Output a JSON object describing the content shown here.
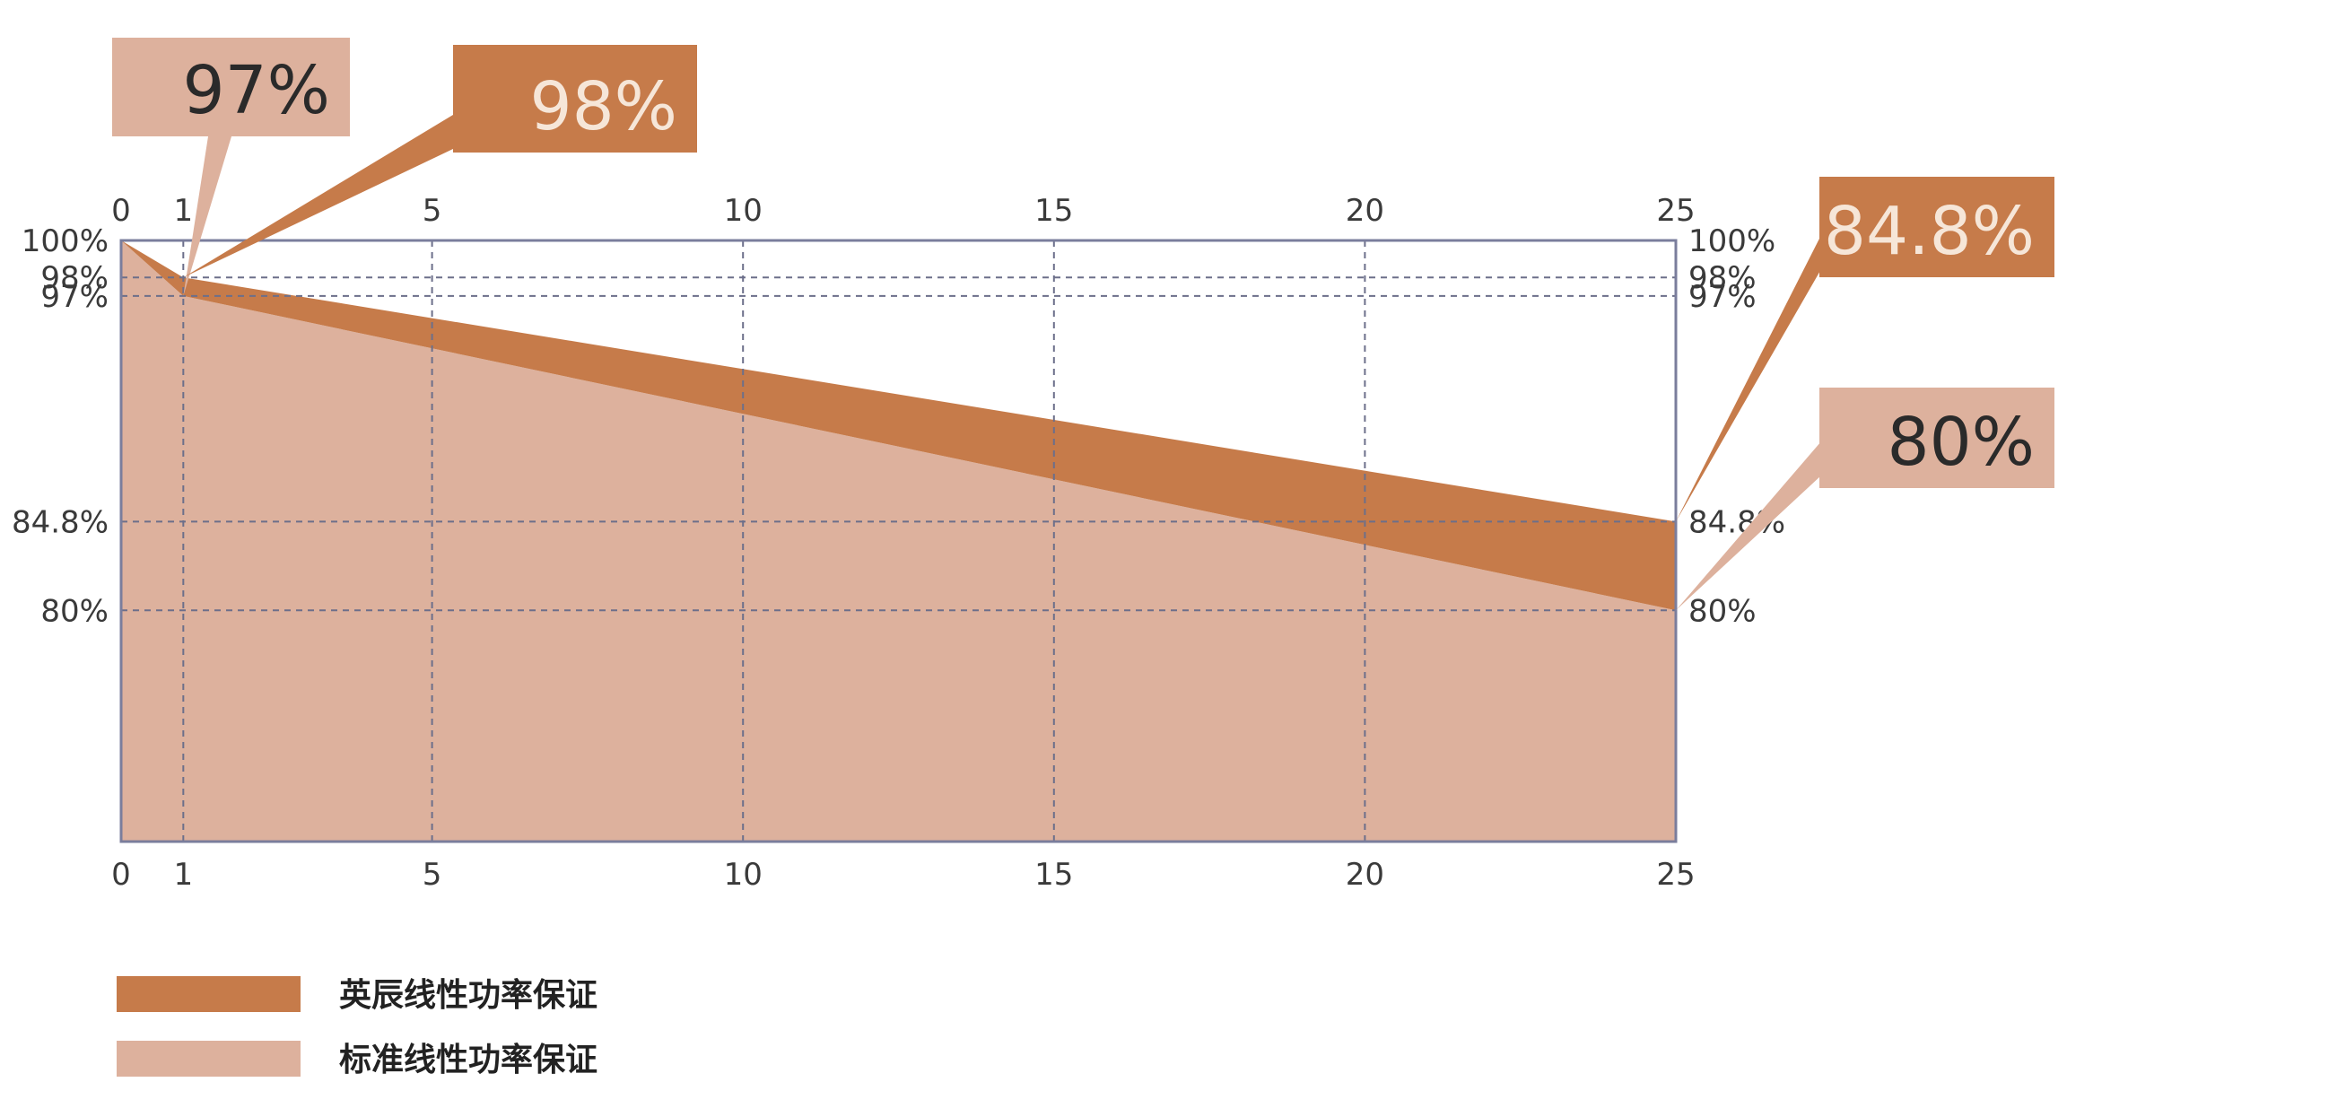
{
  "chart_data": {
    "type": "area",
    "x_ticks": [
      "0",
      "1",
      "5",
      "10",
      "15",
      "20",
      "25"
    ],
    "y_ticks": [
      "100%",
      "98%",
      "97%",
      "84.8%",
      "80%"
    ],
    "xlim": [
      0,
      25
    ],
    "ylim": [
      67.5,
      100
    ],
    "grid": true,
    "series": [
      {
        "name": "英辰线性功率保证",
        "color": "#c67b4a",
        "points": [
          [
            0,
            100
          ],
          [
            1,
            98
          ],
          [
            25,
            84.8
          ]
        ]
      },
      {
        "name": "标准线性功率保证",
        "color": "#ddb19d",
        "points": [
          [
            0,
            100
          ],
          [
            1,
            97
          ],
          [
            25,
            80
          ]
        ]
      }
    ],
    "callouts": [
      {
        "text": "97%",
        "series": 1,
        "x": 1,
        "y": 97,
        "box": "#ddb19d",
        "text_color": "#2a2a2a"
      },
      {
        "text": "98%",
        "series": 0,
        "x": 1,
        "y": 98,
        "box": "#c67b4a",
        "text_color": "#f6e6d8"
      },
      {
        "text": "84.8%",
        "series": 0,
        "x": 25,
        "y": 84.8,
        "box": "#c67b4a",
        "text_color": "#f6e6d8"
      },
      {
        "text": "80%",
        "series": 1,
        "x": 25,
        "y": 80,
        "box": "#ddb19d",
        "text_color": "#2a2a2a"
      }
    ],
    "legend_position": "bottom-left"
  }
}
